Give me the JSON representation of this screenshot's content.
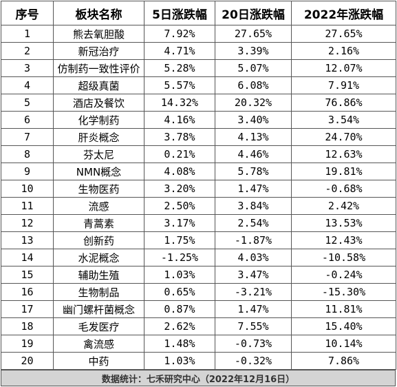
{
  "table": {
    "headers": [
      "序号",
      "板块名称",
      "5日涨跌幅",
      "20日涨跌幅",
      "2022年涨跌幅"
    ],
    "rows": [
      [
        "1",
        "熊去氧胆酸",
        "7.92%",
        "27.65%",
        "27.65%"
      ],
      [
        "2",
        "新冠治疗",
        "4.71%",
        "3.39%",
        "2.16%"
      ],
      [
        "3",
        "仿制药一致性评价",
        "5.28%",
        "5.07%",
        "12.07%"
      ],
      [
        "4",
        "超级真菌",
        "5.57%",
        "6.08%",
        "7.91%"
      ],
      [
        "5",
        "酒店及餐饮",
        "14.32%",
        "20.32%",
        "76.86%"
      ],
      [
        "6",
        "化学制药",
        "4.16%",
        "3.40%",
        "3.54%"
      ],
      [
        "7",
        "肝炎概念",
        "3.78%",
        "4.13%",
        "24.70%"
      ],
      [
        "8",
        "芬太尼",
        "0.21%",
        "4.46%",
        "12.63%"
      ],
      [
        "9",
        "NMN概念",
        "4.08%",
        "5.78%",
        "19.81%"
      ],
      [
        "10",
        "生物医药",
        "3.20%",
        "1.47%",
        "-0.68%"
      ],
      [
        "11",
        "流感",
        "2.50%",
        "3.84%",
        "2.42%"
      ],
      [
        "12",
        "青蒿素",
        "3.17%",
        "2.54%",
        "13.53%"
      ],
      [
        "13",
        "创新药",
        "1.75%",
        "-1.87%",
        "12.43%"
      ],
      [
        "14",
        "水泥概念",
        "-1.25%",
        "4.03%",
        "-10.58%"
      ],
      [
        "15",
        "辅助生殖",
        "1.03%",
        "3.47%",
        "-0.24%"
      ],
      [
        "16",
        "生物制品",
        "0.65%",
        "-3.21%",
        "-15.30%"
      ],
      [
        "17",
        "幽门螺杆菌概念",
        "0.87%",
        "1.47%",
        "11.81%"
      ],
      [
        "18",
        "毛发医疗",
        "2.62%",
        "7.55%",
        "15.40%"
      ],
      [
        "19",
        "禽流感",
        "1.48%",
        "-0.73%",
        "10.14%"
      ],
      [
        "20",
        "中药",
        "1.03%",
        "-0.32%",
        "7.86%"
      ]
    ]
  },
  "footer": {
    "source": "数据统计：七禾研究中心（2022年12月16日）"
  }
}
